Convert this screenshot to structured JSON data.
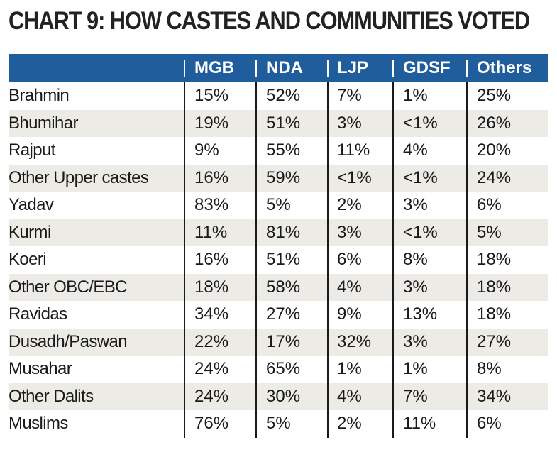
{
  "chart_data": {
    "type": "table",
    "title": "CHART 9: HOW CASTES AND COMMUNITIES VOTED",
    "columns": [
      "MGB",
      "NDA",
      "LJP",
      "GDSF",
      "Others"
    ],
    "rows": [
      {
        "label": "Brahmin",
        "values": [
          "15%",
          "52%",
          "7%",
          "1%",
          "25%"
        ]
      },
      {
        "label": "Bhumihar",
        "values": [
          "19%",
          "51%",
          "3%",
          "<1%",
          "26%"
        ]
      },
      {
        "label": "Rajput",
        "values": [
          "9%",
          "55%",
          "11%",
          "4%",
          "20%"
        ]
      },
      {
        "label": "Other Upper castes",
        "values": [
          "16%",
          "59%",
          "<1%",
          "<1%",
          "24%"
        ]
      },
      {
        "label": "Yadav",
        "values": [
          "83%",
          "5%",
          "2%",
          "3%",
          "6%"
        ]
      },
      {
        "label": "Kurmi",
        "values": [
          "11%",
          "81%",
          "3%",
          "<1%",
          "5%"
        ]
      },
      {
        "label": "Koeri",
        "values": [
          "16%",
          "51%",
          "6%",
          "8%",
          "18%"
        ]
      },
      {
        "label": "Other OBC/EBC",
        "values": [
          "18%",
          "58%",
          "4%",
          "3%",
          "18%"
        ]
      },
      {
        "label": "Ravidas",
        "values": [
          "34%",
          "27%",
          "9%",
          "13%",
          "18%"
        ]
      },
      {
        "label": "Dusadh/Paswan",
        "values": [
          "22%",
          "17%",
          "32%",
          "3%",
          "27%"
        ]
      },
      {
        "label": "Musahar",
        "values": [
          "24%",
          "65%",
          "1%",
          "1%",
          "8%"
        ]
      },
      {
        "label": "Other Dalits",
        "values": [
          "24%",
          "30%",
          "4%",
          "7%",
          "34%"
        ]
      },
      {
        "label": "Muslims",
        "values": [
          "76%",
          "5%",
          "2%",
          "11%",
          "6%"
        ]
      }
    ]
  },
  "colors": {
    "header_bg": "#1f5d9c",
    "header_text": "#ffffff",
    "shade_row": "#ecebe6"
  }
}
